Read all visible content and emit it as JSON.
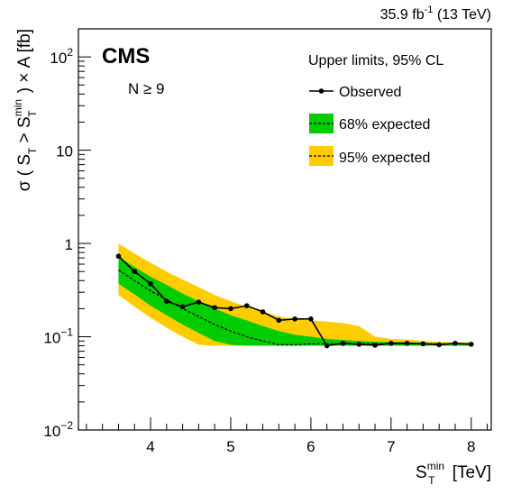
{
  "header": {
    "lumi": "35.9 fb",
    "lumi_exp": "-1",
    "energy": " (13 TeV)"
  },
  "labels": {
    "cms": "CMS",
    "selection": "N ≥ 9",
    "legend_title": "Upper limits, 95% CL",
    "observed": "Observed",
    "exp68": "68% expected",
    "exp95": "95% expected"
  },
  "axes": {
    "x_label_main": "S",
    "x_label_sup": "min",
    "x_label_sub": "T",
    "x_label_unit": " [TeV]",
    "y_label_prefix": "σ ( S",
    "y_label_sub": "T",
    "y_label_mid": " > S",
    "y_label_sup": "min",
    "y_label_sub2": "T",
    "y_label_suffix": " ) × A [fb]"
  },
  "colors": {
    "green": "#00cc00",
    "yellow": "#ffcc00",
    "line": "#000000"
  },
  "chart_data": {
    "type": "line",
    "xlim": [
      3.1,
      8.25
    ],
    "ylim": [
      0.01,
      200
    ],
    "y_log": true,
    "x_ticks": [
      {
        "v": 4,
        "label": "4"
      },
      {
        "v": 5,
        "label": "5"
      },
      {
        "v": 6,
        "label": "6"
      },
      {
        "v": 7,
        "label": "7"
      },
      {
        "v": 8,
        "label": "8"
      }
    ],
    "y_ticks": [
      {
        "v": 0.01,
        "base": "10",
        "exp": "−2"
      },
      {
        "v": 0.1,
        "base": "10",
        "exp": "−1"
      },
      {
        "v": 1,
        "base": "1",
        "exp": ""
      },
      {
        "v": 10,
        "base": "10",
        "exp": ""
      },
      {
        "v": 100,
        "base": "10",
        "exp": "2"
      }
    ],
    "x": [
      3.6,
      3.8,
      4.0,
      4.2,
      4.4,
      4.6,
      4.8,
      5.0,
      5.2,
      5.4,
      5.6,
      5.8,
      6.0,
      6.2,
      6.4,
      6.6,
      6.8,
      7.0,
      7.2,
      7.4,
      7.6,
      7.8,
      8.0
    ],
    "series": [
      {
        "name": "Observed",
        "values": [
          0.73,
          0.5,
          0.37,
          0.24,
          0.21,
          0.235,
          0.205,
          0.2,
          0.215,
          0.185,
          0.15,
          0.155,
          0.155,
          0.08,
          0.085,
          0.083,
          0.081,
          0.085,
          0.085,
          0.084,
          0.082,
          0.085,
          0.083
        ]
      },
      {
        "name": "Expected",
        "values": [
          0.52,
          0.4,
          0.31,
          0.25,
          0.2,
          0.165,
          0.135,
          0.115,
          0.1,
          0.09,
          0.082,
          0.082,
          0.084,
          0.084,
          0.084,
          0.084,
          0.084,
          0.084,
          0.084,
          0.084,
          0.084,
          0.084,
          0.084
        ]
      }
    ],
    "band68": {
      "lower": [
        0.37,
        0.285,
        0.215,
        0.17,
        0.135,
        0.11,
        0.09,
        0.082,
        0.08,
        0.08,
        0.08,
        0.08,
        0.08,
        0.08,
        0.08,
        0.08,
        0.08,
        0.08,
        0.08,
        0.08,
        0.08,
        0.08,
        0.08
      ],
      "upper": [
        0.72,
        0.56,
        0.44,
        0.36,
        0.29,
        0.24,
        0.2,
        0.17,
        0.15,
        0.13,
        0.115,
        0.105,
        0.1,
        0.095,
        0.092,
        0.09,
        0.088,
        0.088,
        0.087,
        0.086,
        0.085,
        0.085,
        0.085
      ]
    },
    "band95": {
      "lower": [
        0.28,
        0.21,
        0.16,
        0.125,
        0.1,
        0.082,
        0.08,
        0.08,
        0.08,
        0.08,
        0.08,
        0.08,
        0.08,
        0.08,
        0.08,
        0.08,
        0.08,
        0.08,
        0.08,
        0.08,
        0.08,
        0.08,
        0.08
      ],
      "upper": [
        1.0,
        0.78,
        0.62,
        0.5,
        0.41,
        0.34,
        0.28,
        0.24,
        0.21,
        0.185,
        0.165,
        0.155,
        0.15,
        0.145,
        0.14,
        0.13,
        0.1,
        0.095,
        0.093,
        0.09,
        0.088,
        0.087,
        0.087
      ]
    },
    "legend": "top-right",
    "grid": false
  }
}
